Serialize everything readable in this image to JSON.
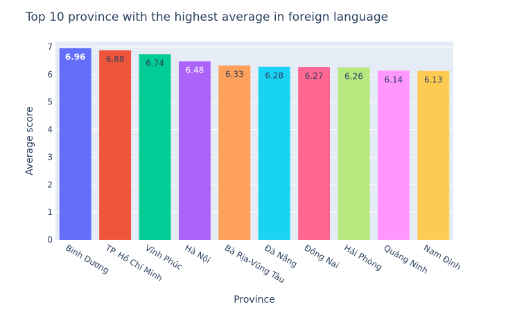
{
  "chart_data": {
    "type": "bar",
    "title": "Top 10 province with the highest average in foreign language",
    "xlabel": "Province",
    "ylabel": "Average score",
    "ylim": [
      0,
      7.2
    ],
    "yticks": [
      0,
      1,
      2,
      3,
      4,
      5,
      6,
      7
    ],
    "grid": true,
    "plot_background": "#e5ecf6",
    "categories": [
      "Bình Dương",
      "TP. Hồ Chí Minh",
      "Vĩnh Phúc",
      "Hà Nội",
      "Bà Rịa-Vũng Tàu",
      "Đà Nẵng",
      "Đồng Nai",
      "Hải Phòng",
      "Quảng Ninh",
      "Nam Định"
    ],
    "values": [
      6.96,
      6.88,
      6.74,
      6.48,
      6.33,
      6.28,
      6.27,
      6.26,
      6.14,
      6.13
    ],
    "labels": [
      "6.96",
      "6.88",
      "6.74",
      "6.48",
      "6.33",
      "6.28",
      "6.27",
      "6.26",
      "6.14",
      "6.13"
    ],
    "colors": [
      "#636efa",
      "#ef553b",
      "#00cc96",
      "#ab63fa",
      "#ffa15a",
      "#19d3f3",
      "#ff6692",
      "#b6e880",
      "#ff97ff",
      "#fecb52"
    ],
    "label_colors": [
      "#ffffff",
      "#2a3f5f",
      "#2a3f5f",
      "#ffffff",
      "#2a3f5f",
      "#2a3f5f",
      "#2a3f5f",
      "#2a3f5f",
      "#2a3f5f",
      "#2a3f5f"
    ]
  }
}
